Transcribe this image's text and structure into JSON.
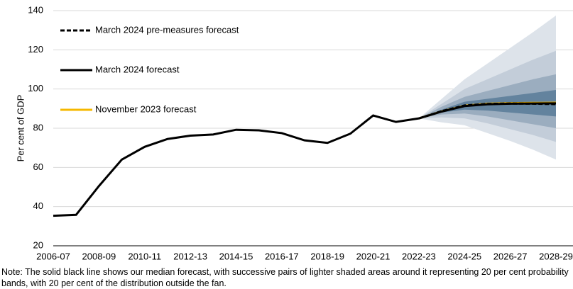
{
  "chart_data": {
    "type": "fan-line",
    "y_axis_label": "Per cent of GDP",
    "note": "Note: The solid black line shows our median forecast, with successive pairs of lighter shaded areas around it representing 20 per cent probability bands, with 20 per cent of the distribution outside the fan.",
    "categories": [
      "2006-07",
      null,
      "2008-09",
      null,
      "2010-11",
      null,
      "2012-13",
      null,
      "2014-15",
      null,
      "2016-17",
      null,
      "2018-19",
      null,
      "2020-21",
      null,
      "2022-23",
      null,
      "2024-25",
      null,
      "2026-27",
      null,
      "2028-29"
    ],
    "ylim": [
      20,
      140
    ],
    "yticks": [
      20,
      40,
      60,
      80,
      100,
      120,
      140
    ],
    "grid": true,
    "legend": "top-left",
    "fan": [
      {
        "color": "#dde3ea",
        "upper": [
          null,
          null,
          null,
          null,
          null,
          null,
          null,
          null,
          null,
          null,
          null,
          null,
          null,
          null,
          null,
          null,
          85,
          95,
          105,
          113,
          121,
          129,
          137.5
        ],
        "lower": [
          null,
          null,
          null,
          null,
          null,
          null,
          null,
          null,
          null,
          null,
          null,
          null,
          null,
          null,
          null,
          null,
          85,
          83,
          81.5,
          77.5,
          73.5,
          69,
          64
        ]
      },
      {
        "color": "#c3cdd9",
        "upper": [
          null,
          null,
          null,
          null,
          null,
          null,
          null,
          null,
          null,
          null,
          null,
          null,
          null,
          null,
          null,
          null,
          85,
          92.5,
          100,
          105,
          110,
          115,
          119.5
        ],
        "lower": [
          null,
          null,
          null,
          null,
          null,
          null,
          null,
          null,
          null,
          null,
          null,
          null,
          null,
          null,
          null,
          null,
          85,
          85.5,
          85,
          82.5,
          79.5,
          76.5,
          73
        ]
      },
      {
        "color": "#9badbf",
        "upper": [
          null,
          null,
          null,
          null,
          null,
          null,
          null,
          null,
          null,
          null,
          null,
          null,
          null,
          null,
          null,
          null,
          85,
          91,
          96,
          99,
          102,
          105,
          107.5
        ],
        "lower": [
          null,
          null,
          null,
          null,
          null,
          null,
          null,
          null,
          null,
          null,
          null,
          null,
          null,
          null,
          null,
          null,
          85,
          87,
          87.5,
          86,
          84,
          82,
          80
        ]
      },
      {
        "color": "#63839e",
        "upper": [
          null,
          null,
          null,
          null,
          null,
          null,
          null,
          null,
          null,
          null,
          null,
          null,
          null,
          null,
          null,
          null,
          85,
          89.5,
          93.5,
          95,
          96.5,
          98,
          99.5
        ],
        "lower": [
          null,
          null,
          null,
          null,
          null,
          null,
          null,
          null,
          null,
          null,
          null,
          null,
          null,
          null,
          null,
          null,
          85,
          88,
          89.5,
          89,
          88,
          87,
          86
        ]
      }
    ],
    "series": [
      {
        "name": "November 2023 forecast",
        "color": "#f5b800",
        "dash": false,
        "values": [
          null,
          null,
          null,
          null,
          null,
          null,
          null,
          null,
          null,
          null,
          null,
          null,
          null,
          null,
          null,
          null,
          85,
          88.6,
          91.5,
          92.5,
          92.8,
          92.9,
          93
        ]
      },
      {
        "name": "March 2024 pre-measures forecast",
        "color": "#000000",
        "dash": true,
        "values": [
          null,
          null,
          null,
          null,
          null,
          null,
          null,
          null,
          null,
          null,
          null,
          null,
          null,
          null,
          null,
          null,
          85,
          88.7,
          91.6,
          92.4,
          92.6,
          92.5,
          92.3
        ]
      },
      {
        "name": "March 2024 forecast",
        "color": "#000000",
        "dash": false,
        "values": [
          35.3,
          35.8,
          50.5,
          64,
          70.5,
          74.5,
          76.2,
          76.8,
          79.2,
          78.9,
          77.5,
          73.8,
          72.5,
          77.2,
          86.5,
          83.2,
          85,
          88.5,
          91.3,
          92.2,
          92.5,
          92.6,
          92.7
        ]
      }
    ]
  }
}
